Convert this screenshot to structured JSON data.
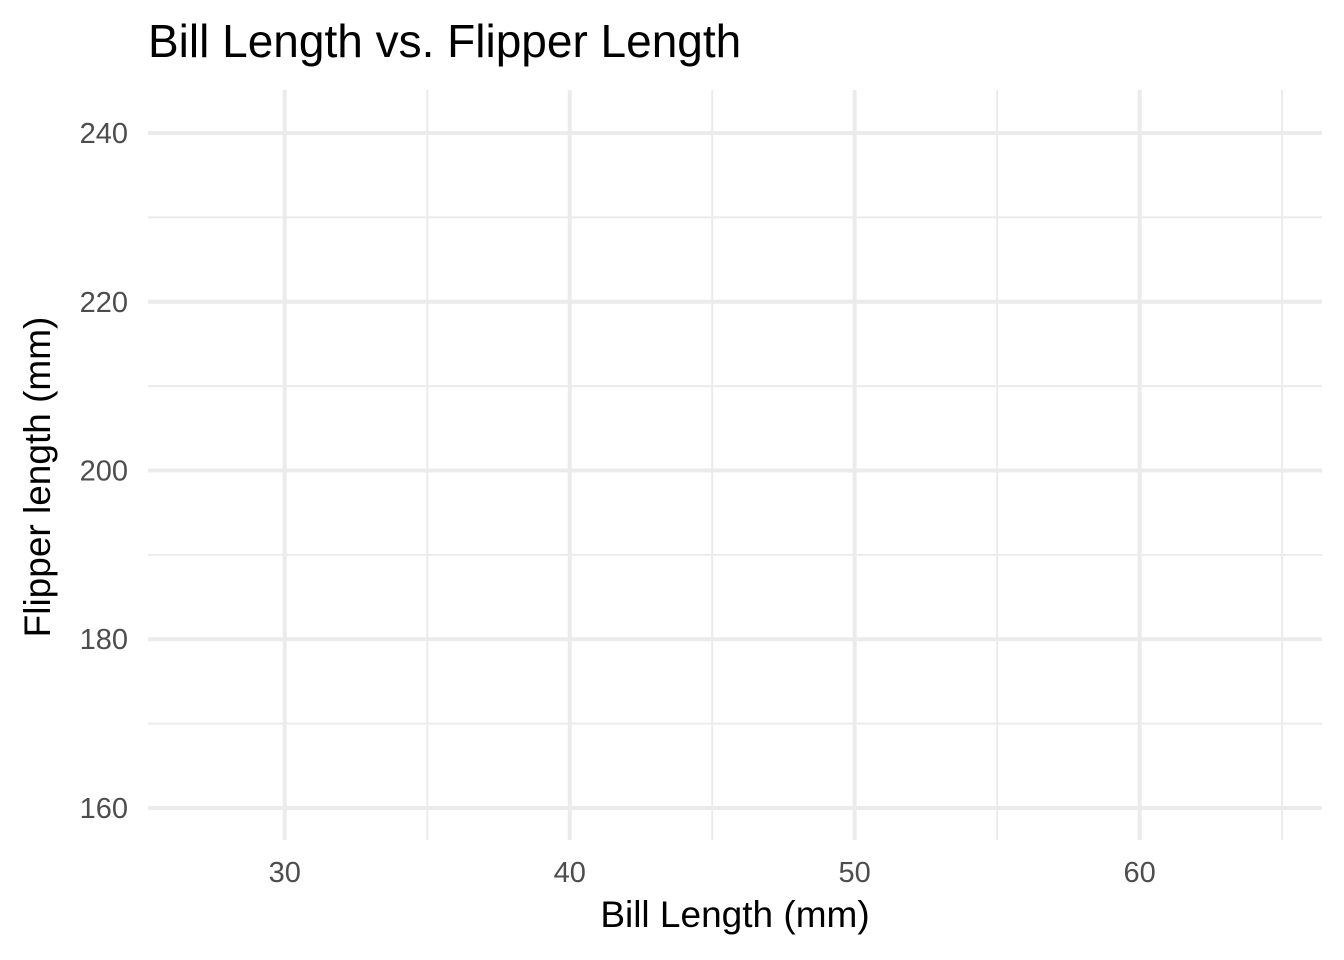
{
  "chart_data": {
    "type": "scatter",
    "title": "Bill Length vs. Flipper Length",
    "xlabel": "Bill Length (mm)",
    "ylabel": "Flipper length (mm)",
    "xlim": [
      25.2,
      66.4
    ],
    "ylim": [
      156.2,
      245.1
    ],
    "x_ticks": [
      30,
      40,
      50,
      60
    ],
    "y_ticks": [
      160,
      180,
      200,
      220,
      240
    ],
    "x_minor_ticks": [
      35,
      45,
      55,
      65
    ],
    "y_minor_ticks": [
      170,
      190,
      210,
      230
    ],
    "grid": true,
    "series": [
      {
        "x": [],
        "y": []
      }
    ]
  },
  "colors": {
    "grid": "#ebebeb",
    "tick_label": "#4d4d4d",
    "text": "#000000",
    "background": "#ffffff"
  }
}
